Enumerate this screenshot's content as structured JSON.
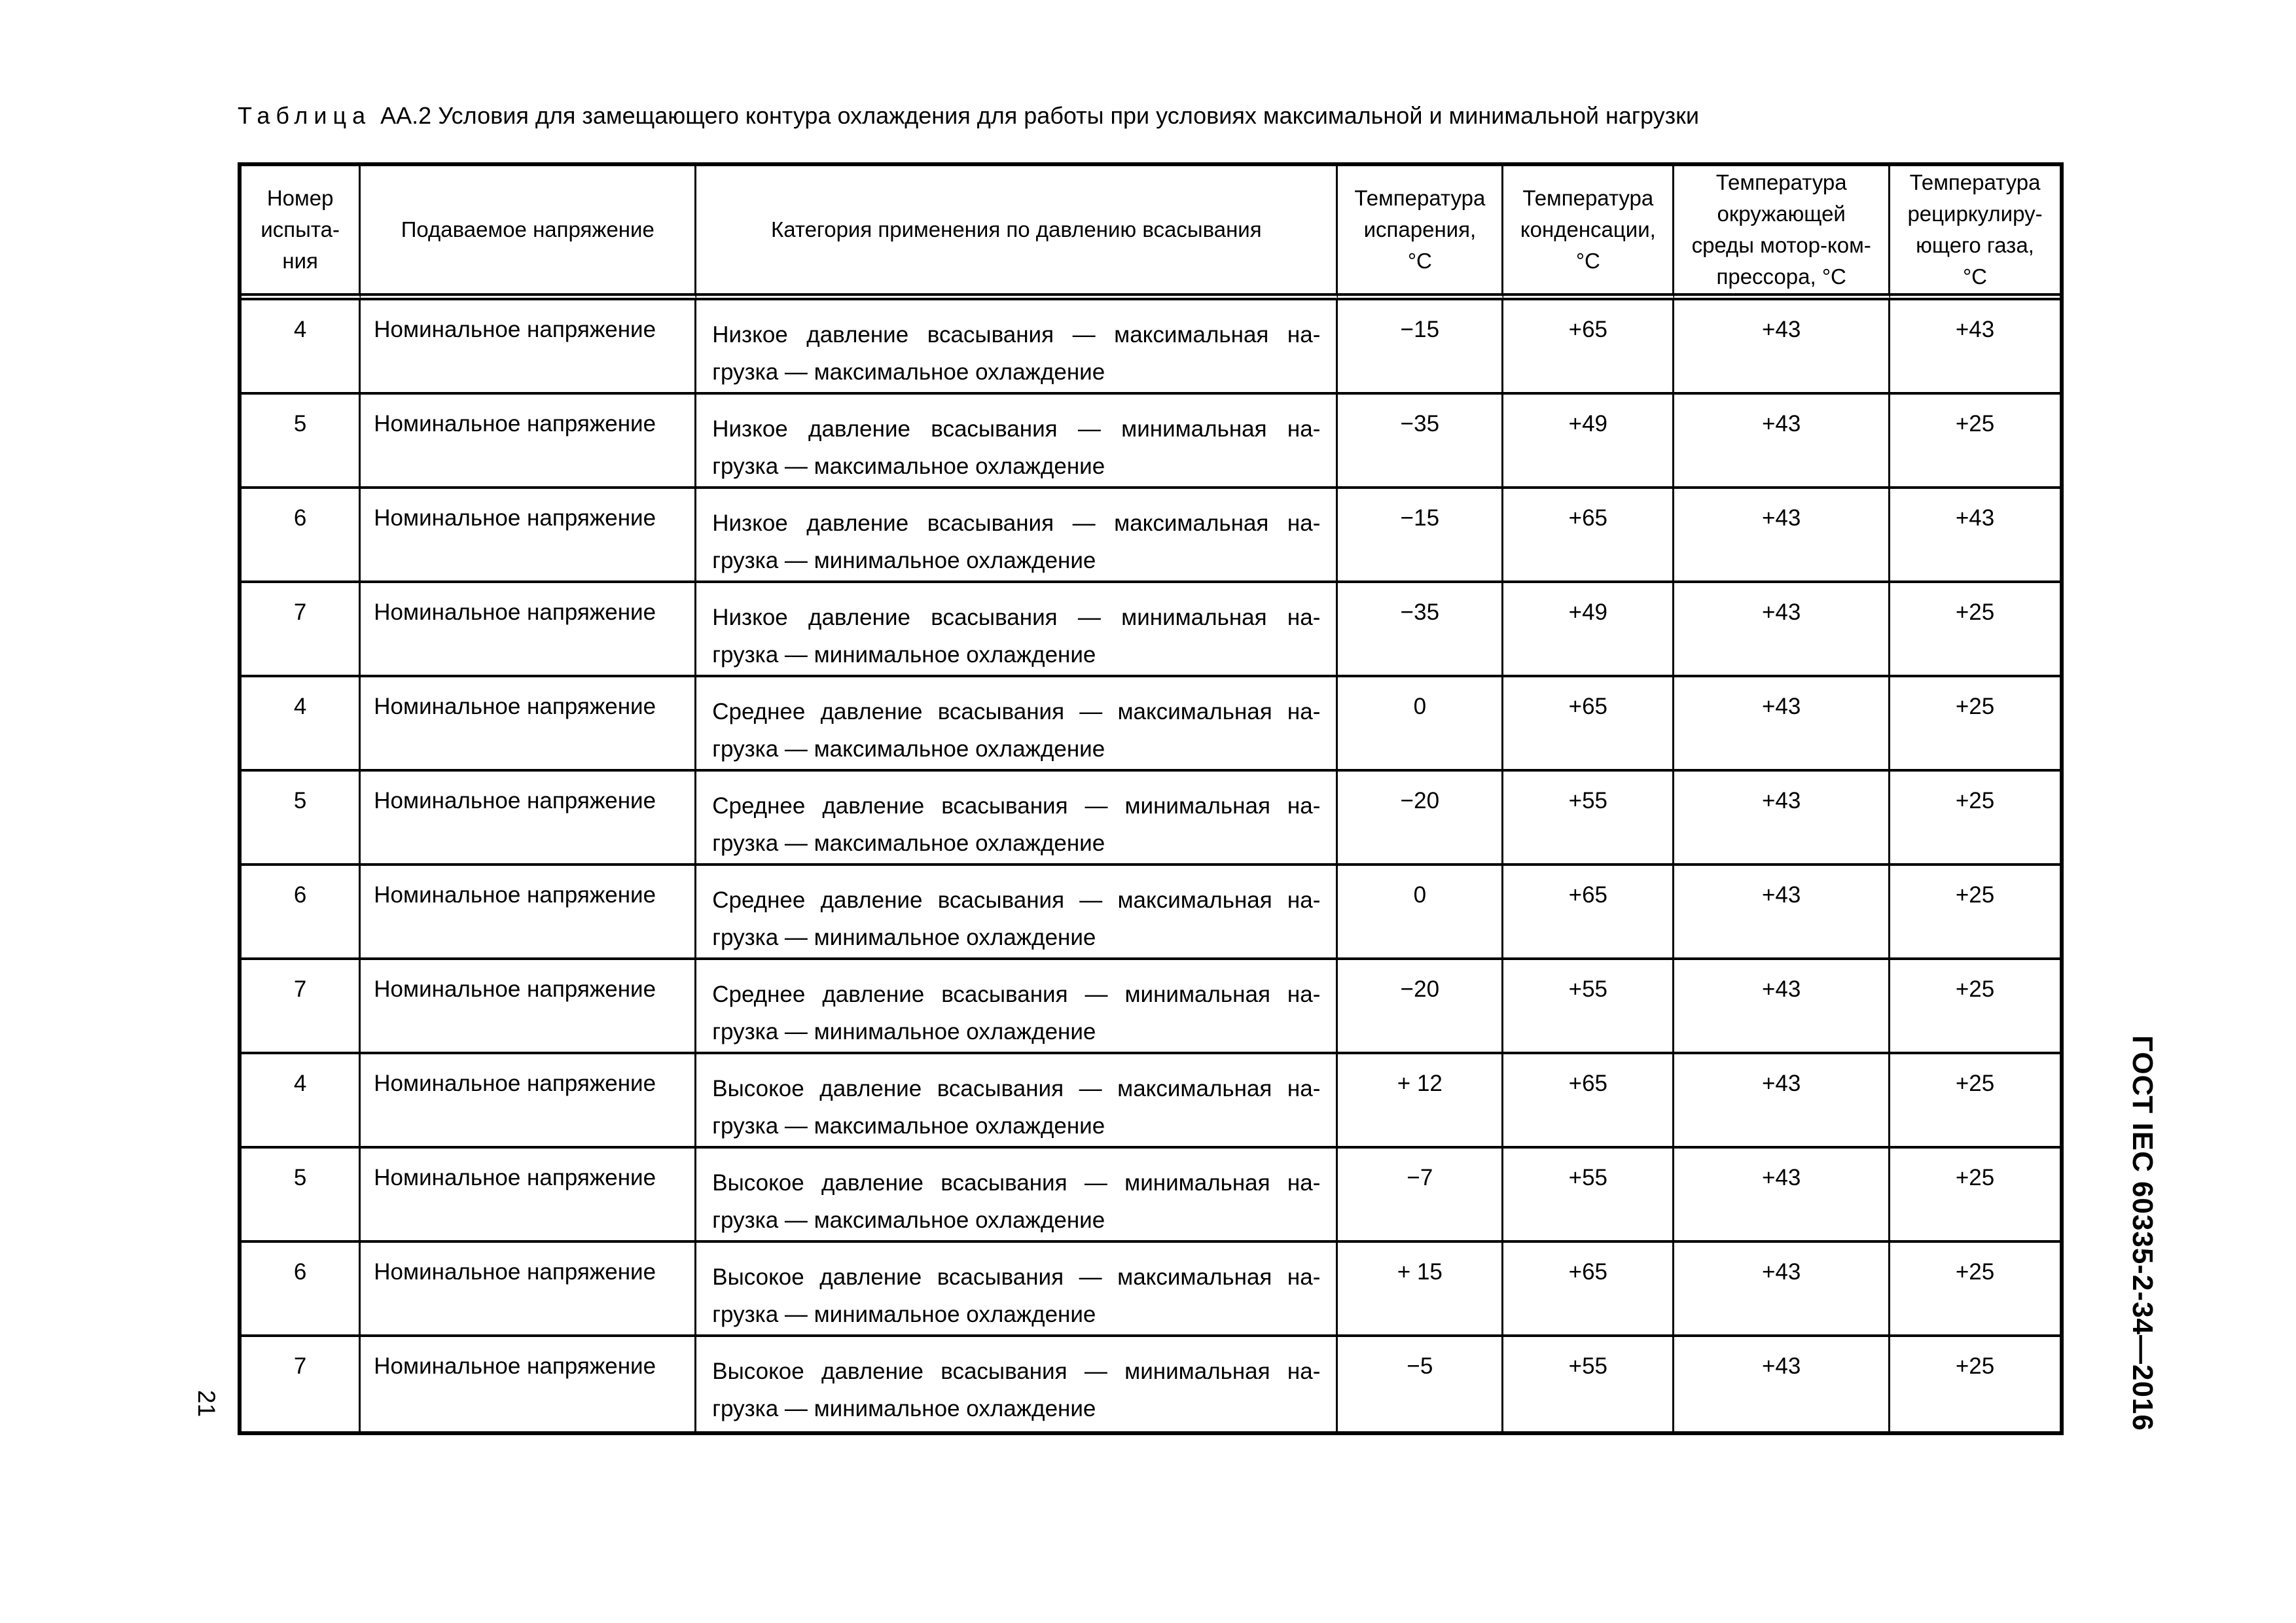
{
  "page": {
    "number": "21",
    "standard_designation": "ГОСТ IEC 60335-2-34—2016"
  },
  "title": {
    "label": "Таблица",
    "text": "АА.2 Условия для замещающего контура охлаждения для работы при условиях максимальной и минимальной нагрузки"
  },
  "table": {
    "columns": [
      {
        "key": "num",
        "title": "Номер\nиспыта-\nния"
      },
      {
        "key": "voltage",
        "title": "Подаваемое напряжение"
      },
      {
        "key": "category",
        "title": "Категория применения по давлению всасывания"
      },
      {
        "key": "t_evap",
        "title": "Температура\nиспарения,\n°С"
      },
      {
        "key": "t_cond",
        "title": "Температура\nконденсации,\n°С"
      },
      {
        "key": "t_amb",
        "title": "Температура\nокружающей\nсреды мотор-ком-\nпрессора, °С"
      },
      {
        "key": "t_recirc",
        "title": "Температура\nрециркулиру-\nющего газа,\n°С"
      }
    ],
    "rows": [
      {
        "num": "4",
        "voltage": "Номинальное напряжение",
        "category": [
          "Низкое давление всасывания — максимальная на-",
          "грузка — максимальное охлаждение"
        ],
        "t_evap": "−15",
        "t_cond": "+65",
        "t_amb": "+43",
        "t_recirc": "+43"
      },
      {
        "num": "5",
        "voltage": "Номинальное напряжение",
        "category": [
          "Низкое давление всасывания — минимальная на-",
          "грузка — максимальное охлаждение"
        ],
        "t_evap": "−35",
        "t_cond": "+49",
        "t_amb": "+43",
        "t_recirc": "+25"
      },
      {
        "num": "6",
        "voltage": "Номинальное напряжение",
        "category": [
          "Низкое давление всасывания — максимальная на-",
          "грузка — минимальное охлаждение"
        ],
        "t_evap": "−15",
        "t_cond": "+65",
        "t_amb": "+43",
        "t_recirc": "+43"
      },
      {
        "num": "7",
        "voltage": "Номинальное напряжение",
        "category": [
          "Низкое давление всасывания — минимальная на-",
          "грузка — минимальное охлаждение"
        ],
        "t_evap": "−35",
        "t_cond": "+49",
        "t_amb": "+43",
        "t_recirc": "+25"
      },
      {
        "num": "4",
        "voltage": "Номинальное напряжение",
        "category": [
          "Среднее давление всасывания — максимальная на-",
          "грузка — максимальное охлаждение"
        ],
        "t_evap": "0",
        "t_cond": "+65",
        "t_amb": "+43",
        "t_recirc": "+25"
      },
      {
        "num": "5",
        "voltage": "Номинальное напряжение",
        "category": [
          "Среднее давление всасывания — минимальная на-",
          "грузка — максимальное охлаждение"
        ],
        "t_evap": "−20",
        "t_cond": "+55",
        "t_amb": "+43",
        "t_recirc": "+25"
      },
      {
        "num": "6",
        "voltage": "Номинальное напряжение",
        "category": [
          "Среднее давление всасывания — максимальная на-",
          "грузка — минимальное охлаждение"
        ],
        "t_evap": "0",
        "t_cond": "+65",
        "t_amb": "+43",
        "t_recirc": "+25"
      },
      {
        "num": "7",
        "voltage": "Номинальное напряжение",
        "category": [
          "Среднее давление всасывания — минимальная на-",
          "грузка — минимальное охлаждение"
        ],
        "t_evap": "−20",
        "t_cond": "+55",
        "t_amb": "+43",
        "t_recirc": "+25"
      },
      {
        "num": "4",
        "voltage": "Номинальное напряжение",
        "category": [
          "Высокое давление всасывания — максимальная на-",
          "грузка — максимальное охлаждение"
        ],
        "t_evap": "+ 12",
        "t_cond": "+65",
        "t_amb": "+43",
        "t_recirc": "+25"
      },
      {
        "num": "5",
        "voltage": "Номинальное напряжение",
        "category": [
          "Высокое давление всасывания — минимальная на-",
          "грузка — максимальное охлаждение"
        ],
        "t_evap": "−7",
        "t_cond": "+55",
        "t_amb": "+43",
        "t_recirc": "+25"
      },
      {
        "num": "6",
        "voltage": "Номинальное напряжение",
        "category": [
          "Высокое давление всасывания — максимальная на-",
          "грузка — минимальное охлаждение"
        ],
        "t_evap": "+ 15",
        "t_cond": "+65",
        "t_amb": "+43",
        "t_recirc": "+25"
      },
      {
        "num": "7",
        "voltage": "Номинальное напряжение",
        "category": [
          "Высокое давление всасывания — минимальная на-",
          "грузка — минимальное охлаждение"
        ],
        "t_evap": "−5",
        "t_cond": "+55",
        "t_amb": "+43",
        "t_recirc": "+25"
      }
    ]
  }
}
